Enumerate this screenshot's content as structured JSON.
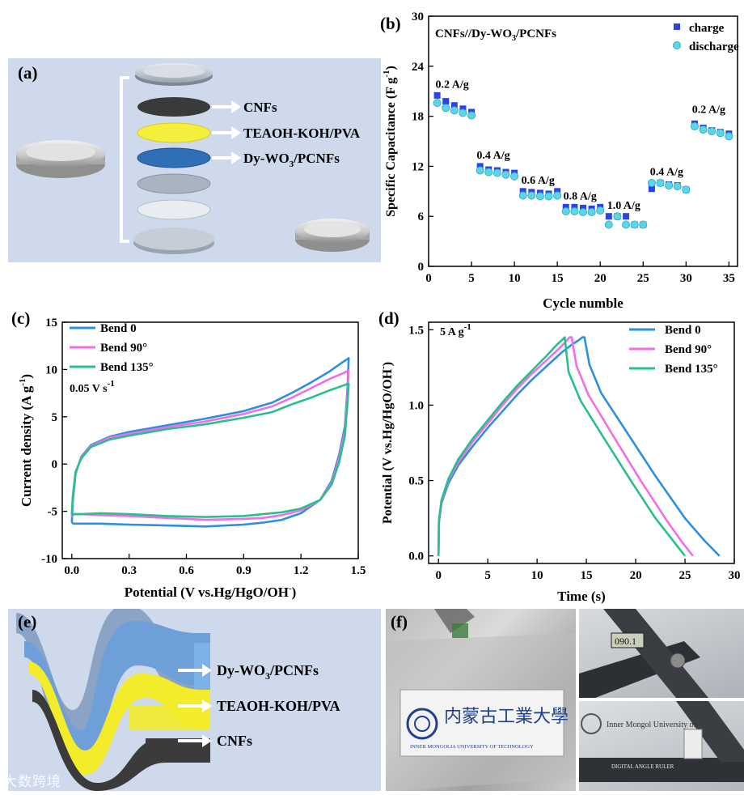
{
  "colors": {
    "bend0": "#2e8fe0",
    "bend90": "#f06ee8",
    "bend135": "#27c08a",
    "charge": "#2a44ea",
    "discharge": "#5cd6e6",
    "panel_bg": "#cfd9ec",
    "layer_cnf": "#3a3a3a",
    "layer_gel": "#f4ee3c",
    "layer_dy": "#2f6fb6"
  },
  "panel_a": {
    "letter": "(a)",
    "labels": [
      "CNFs",
      "TEAOH-KOH/PVA",
      "Dy-WO",
      "3",
      "/PCNFs"
    ]
  },
  "panel_e": {
    "letter": "(e)",
    "labels": [
      "Dy-WO",
      "3",
      "/PCNFs",
      "TEAOH-KOH/PVA",
      "CNFs"
    ]
  },
  "panel_f": {
    "letter": "(f)",
    "logo_text_cn": "内蒙古工業大學",
    "logo_text_en": "INNER MONGOLIA UNIVERSITY OF TECHNOLOGY",
    "ruler_text": "DIGITAL ANGLE RULER",
    "ruler_reading": "090.1",
    "photo_caption": "Inner Mongol University of"
  },
  "watermark": "大数跨境",
  "chart_data": [
    {
      "id": "b",
      "letter": "(b)",
      "type": "scatter",
      "title": "CNFs//Dy-WO3/PCNFs",
      "title_parts": [
        "CNFs//Dy-WO",
        "3",
        "/PCNFs"
      ],
      "xlabel": "Cycle numble",
      "ylabel": "Specific Capacitance (F g",
      "ylabel_sup": "-1",
      "ylabel_close": ")",
      "xlim": [
        0,
        36
      ],
      "ylim": [
        0,
        30
      ],
      "xticks": [
        0,
        5,
        10,
        15,
        20,
        25,
        30,
        35
      ],
      "yticks": [
        0,
        6,
        12,
        18,
        24,
        30
      ],
      "legend": [
        "charge",
        "discharge"
      ],
      "series": [
        {
          "name": "charge",
          "marker": "square",
          "x": [
            1,
            2,
            3,
            4,
            5,
            6,
            7,
            8,
            9,
            10,
            11,
            12,
            13,
            14,
            15,
            16,
            17,
            18,
            19,
            20,
            21,
            22,
            23,
            24,
            25,
            26,
            27,
            28,
            29,
            30,
            31,
            32,
            33,
            34,
            35
          ],
          "y": [
            20.5,
            19.8,
            19.3,
            18.9,
            18.5,
            12.0,
            11.6,
            11.5,
            11.3,
            11.2,
            9.0,
            8.9,
            8.8,
            8.7,
            9.0,
            7.1,
            7.1,
            7.0,
            6.9,
            7.1,
            6.0,
            6.0,
            6.0,
            5.0,
            5.0,
            9.3,
            10.0,
            9.8,
            9.7,
            9.2,
            17.1,
            16.6,
            16.3,
            16.1,
            15.9
          ]
        },
        {
          "name": "discharge",
          "marker": "circle",
          "x": [
            1,
            2,
            3,
            4,
            5,
            6,
            7,
            8,
            9,
            10,
            11,
            12,
            13,
            14,
            15,
            16,
            17,
            18,
            19,
            20,
            21,
            22,
            23,
            24,
            25,
            26,
            27,
            28,
            29,
            30,
            31,
            32,
            33,
            34,
            35
          ],
          "y": [
            19.6,
            19.0,
            18.7,
            18.4,
            18.1,
            11.5,
            11.3,
            11.2,
            11.0,
            10.8,
            8.5,
            8.5,
            8.4,
            8.4,
            8.5,
            6.6,
            6.6,
            6.5,
            6.5,
            6.7,
            5.0,
            6.0,
            5.0,
            5.0,
            5.0,
            10.0,
            10.0,
            9.7,
            9.6,
            9.2,
            16.8,
            16.4,
            16.2,
            16.0,
            15.6
          ]
        }
      ],
      "annotations": [
        {
          "text": "0.2 A/g",
          "x": 0.8,
          "y": 21.4
        },
        {
          "text": "0.4 A/g",
          "x": 5.6,
          "y": 12.9
        },
        {
          "text": "0.6 A/g",
          "x": 10.8,
          "y": 9.9
        },
        {
          "text": "0.8 A/g",
          "x": 15.7,
          "y": 8.0
        },
        {
          "text": "1.0 A/g",
          "x": 20.8,
          "y": 6.9
        },
        {
          "text": "0.4 A/g",
          "x": 25.8,
          "y": 10.9
        },
        {
          "text": "0.2 A/g",
          "x": 30.7,
          "y": 18.4
        }
      ]
    },
    {
      "id": "c",
      "letter": "(c)",
      "type": "line",
      "annotation": "0.05 V s",
      "annotation_sup": "-1",
      "xlabel": "Potential (V vs.Hg/HgO/OH",
      "xlabel_sup": "-",
      "xlabel_close": ")",
      "ylabel": "Current density (A g",
      "ylabel_sup": "-1",
      "ylabel_close": ")",
      "xlim": [
        -0.05,
        1.5
      ],
      "ylim": [
        -10,
        15
      ],
      "xticks": [
        0.0,
        0.3,
        0.6,
        0.9,
        1.2,
        1.5
      ],
      "xtick_labels": [
        "0.0",
        "0.3",
        "0.6",
        "0.9",
        "1.2",
        "1.5"
      ],
      "yticks": [
        -10,
        -5,
        0,
        5,
        10,
        15
      ],
      "legend": [
        "Bend 0",
        "Bend 90°",
        "Bend 135°"
      ],
      "series": [
        {
          "name": "Bend 0",
          "x": [
            0,
            0.005,
            0.02,
            0.05,
            0.1,
            0.2,
            0.3,
            0.5,
            0.7,
            0.9,
            1.05,
            1.15,
            1.25,
            1.35,
            1.42,
            1.45,
            1.445,
            1.43,
            1.4,
            1.36,
            1.3,
            1.2,
            1.1,
            1.0,
            0.9,
            0.7,
            0.5,
            0.3,
            0.15,
            0.05,
            0.01,
            0
          ],
          "y": [
            -6.2,
            -4.0,
            -1.0,
            0.8,
            2.0,
            2.9,
            3.4,
            4.1,
            4.8,
            5.6,
            6.5,
            7.5,
            8.6,
            9.8,
            10.8,
            11.2,
            8.5,
            4.0,
            1.0,
            -1.8,
            -3.8,
            -5.2,
            -5.9,
            -6.2,
            -6.4,
            -6.6,
            -6.5,
            -6.4,
            -6.3,
            -6.3,
            -6.3,
            -6.2
          ]
        },
        {
          "name": "Bend 90°",
          "x": [
            0,
            0.005,
            0.02,
            0.05,
            0.1,
            0.2,
            0.3,
            0.5,
            0.7,
            0.9,
            1.05,
            1.15,
            1.25,
            1.35,
            1.42,
            1.45,
            1.445,
            1.43,
            1.4,
            1.36,
            1.3,
            1.2,
            1.1,
            1.0,
            0.9,
            0.7,
            0.5,
            0.3,
            0.15,
            0.05,
            0.01,
            0
          ],
          "y": [
            -5.6,
            -3.6,
            -0.9,
            0.7,
            1.9,
            2.8,
            3.2,
            3.9,
            4.5,
            5.3,
            6.1,
            7.0,
            8.0,
            9.0,
            9.6,
            9.9,
            7.8,
            3.5,
            0.6,
            -2.0,
            -3.8,
            -4.9,
            -5.4,
            -5.7,
            -5.8,
            -5.9,
            -5.7,
            -5.5,
            -5.4,
            -5.3,
            -5.3,
            -5.6
          ]
        },
        {
          "name": "Bend 135°",
          "x": [
            0,
            0.005,
            0.02,
            0.05,
            0.1,
            0.2,
            0.3,
            0.5,
            0.7,
            0.9,
            1.05,
            1.15,
            1.25,
            1.35,
            1.42,
            1.45,
            1.445,
            1.43,
            1.4,
            1.36,
            1.3,
            1.2,
            1.1,
            1.0,
            0.9,
            0.7,
            0.5,
            0.3,
            0.15,
            0.05,
            0.01,
            0
          ],
          "y": [
            -5.4,
            -3.4,
            -0.8,
            0.6,
            1.8,
            2.6,
            3.0,
            3.7,
            4.2,
            4.9,
            5.5,
            6.3,
            7.0,
            7.8,
            8.3,
            8.5,
            6.8,
            3.0,
            0.2,
            -2.2,
            -3.8,
            -4.7,
            -5.1,
            -5.3,
            -5.5,
            -5.6,
            -5.5,
            -5.3,
            -5.2,
            -5.3,
            -5.3,
            -5.4
          ]
        }
      ]
    },
    {
      "id": "d",
      "letter": "(d)",
      "type": "line",
      "annotation": "5 A g",
      "annotation_sup": "-1",
      "xlabel": "Time (s)",
      "ylabel": "Potential (V vs.Hg/HgO/OH",
      "ylabel_sup": "-",
      "ylabel_close": ")",
      "xlim": [
        -1,
        30
      ],
      "ylim": [
        -0.05,
        1.55
      ],
      "xticks": [
        0,
        5,
        10,
        15,
        20,
        25,
        30
      ],
      "yticks": [
        0.0,
        0.5,
        1.0,
        1.5
      ],
      "ytick_labels": [
        "0.0",
        "0.5",
        "1.0",
        "1.5"
      ],
      "legend": [
        "Bend 0",
        "Bend 90°",
        "Bend 135°"
      ],
      "series": [
        {
          "name": "Bend 0",
          "x": [
            0,
            0.05,
            0.3,
            1.0,
            2.0,
            3.5,
            5.0,
            6.5,
            8.0,
            9.5,
            11.0,
            12.5,
            13.5,
            14.2,
            14.6,
            14.8,
            15.3,
            16.5,
            19.0,
            22.0,
            25.0,
            27.0,
            28.5
          ],
          "y": [
            0.0,
            0.22,
            0.35,
            0.48,
            0.6,
            0.73,
            0.85,
            0.96,
            1.07,
            1.17,
            1.26,
            1.35,
            1.4,
            1.43,
            1.45,
            1.45,
            1.27,
            1.08,
            0.83,
            0.53,
            0.25,
            0.1,
            0.0
          ]
        },
        {
          "name": "Bend 90°",
          "x": [
            0,
            0.05,
            0.3,
            1.0,
            2.0,
            3.5,
            5.0,
            6.5,
            8.0,
            9.5,
            11.0,
            12.3,
            12.9,
            13.3,
            13.5,
            14.0,
            15.2,
            17.5,
            20.5,
            23.0,
            24.6,
            25.8
          ],
          "y": [
            0.0,
            0.23,
            0.36,
            0.5,
            0.62,
            0.76,
            0.88,
            1.0,
            1.11,
            1.21,
            1.3,
            1.38,
            1.42,
            1.45,
            1.45,
            1.26,
            1.07,
            0.82,
            0.5,
            0.25,
            0.1,
            0.0
          ]
        },
        {
          "name": "Bend 135°",
          "x": [
            0,
            0.05,
            0.3,
            1.0,
            2.0,
            3.5,
            5.0,
            6.5,
            8.0,
            9.5,
            11.0,
            12.0,
            12.5,
            12.8,
            13.2,
            14.4,
            16.6,
            19.5,
            22.0,
            23.8,
            25.0
          ],
          "y": [
            0.0,
            0.24,
            0.37,
            0.51,
            0.64,
            0.78,
            0.9,
            1.02,
            1.13,
            1.23,
            1.33,
            1.4,
            1.43,
            1.45,
            1.22,
            1.03,
            0.8,
            0.5,
            0.25,
            0.1,
            0.0
          ]
        }
      ]
    }
  ]
}
